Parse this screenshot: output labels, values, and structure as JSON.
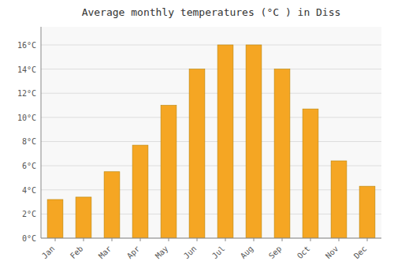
{
  "chart_data": {
    "type": "bar",
    "title": "Average monthly temperatures (°C ) in Diss",
    "categories": [
      "Jan",
      "Feb",
      "Mar",
      "Apr",
      "May",
      "Jun",
      "Jul",
      "Aug",
      "Sep",
      "Oct",
      "Nov",
      "Dec"
    ],
    "values": [
      3.2,
      3.4,
      5.5,
      7.7,
      11.0,
      14.0,
      16.0,
      16.0,
      14.0,
      10.7,
      6.4,
      4.3
    ],
    "color": "#F5A623",
    "ylim": [
      0,
      17.5
    ],
    "yticks": [
      {
        "value": 0,
        "label": "0°C"
      },
      {
        "value": 2,
        "label": "2°C"
      },
      {
        "value": 4,
        "label": "4°C"
      },
      {
        "value": 6,
        "label": "6°C"
      },
      {
        "value": 8,
        "label": "8°C"
      },
      {
        "value": 10,
        "label": "10°C"
      },
      {
        "value": 12,
        "label": "12°C"
      },
      {
        "value": 14,
        "label": "14°C"
      },
      {
        "value": 16,
        "label": "16°C"
      }
    ],
    "grid": true
  }
}
